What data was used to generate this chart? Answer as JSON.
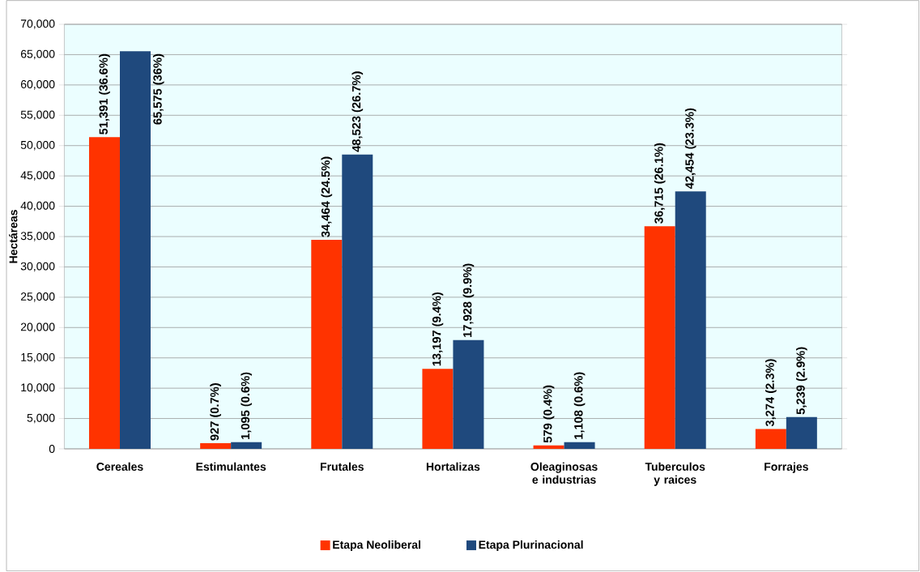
{
  "chart_data": {
    "type": "bar",
    "ylabel": "Hectáreas",
    "categories": [
      "Cereales",
      "Estimulantes",
      "Frutales",
      "Hortalizas",
      "Oleaginosas e industrias",
      "Tuberculos y raices",
      "Forrajes"
    ],
    "series": [
      {
        "name": "Etapa Neoliberal",
        "color": "#ff3300",
        "values": [
          51391,
          927,
          34464,
          13197,
          579,
          36715,
          3274
        ],
        "value_labels": [
          "51,391 (36.6%)",
          "927 (0.7%)",
          "34,464 (24.5%)",
          "13,197 (9.4%)",
          "579 (0.4%)",
          "36,715 (26.1%)",
          "3,274 (2.3%)"
        ]
      },
      {
        "name": "Etapa Plurinacional",
        "color": "#1f497d",
        "values": [
          65575,
          1095,
          48523,
          17928,
          1108,
          42454,
          5239
        ],
        "value_labels": [
          "65,575 (36%)",
          "1,095 (0.6%)",
          "48,523 (26.7%)",
          "17,928 (9.9%)",
          "1,108 (0.6%)",
          "42,454 (23.3%)",
          "5,239 (2.9%)"
        ]
      }
    ],
    "ylim": [
      0,
      70000
    ],
    "yticks": [
      {
        "value": 0,
        "label": "0"
      },
      {
        "value": 5000,
        "label": "5,000"
      },
      {
        "value": 10000,
        "label": "10,000"
      },
      {
        "value": 15000,
        "label": "15,000"
      },
      {
        "value": 20000,
        "label": "20,000"
      },
      {
        "value": 25000,
        "label": "25,000"
      },
      {
        "value": 30000,
        "label": "30,000"
      },
      {
        "value": 35000,
        "label": "35,000"
      },
      {
        "value": 40000,
        "label": "40,000"
      },
      {
        "value": 45000,
        "label": "45,000"
      },
      {
        "value": 50000,
        "label": "50,000"
      },
      {
        "value": 55000,
        "label": "55,000"
      },
      {
        "value": 60000,
        "label": "60,000"
      },
      {
        "value": 65000,
        "label": "65,000"
      },
      {
        "value": 70000,
        "label": "70,000"
      }
    ],
    "grid": "y",
    "legend": "bottom"
  }
}
